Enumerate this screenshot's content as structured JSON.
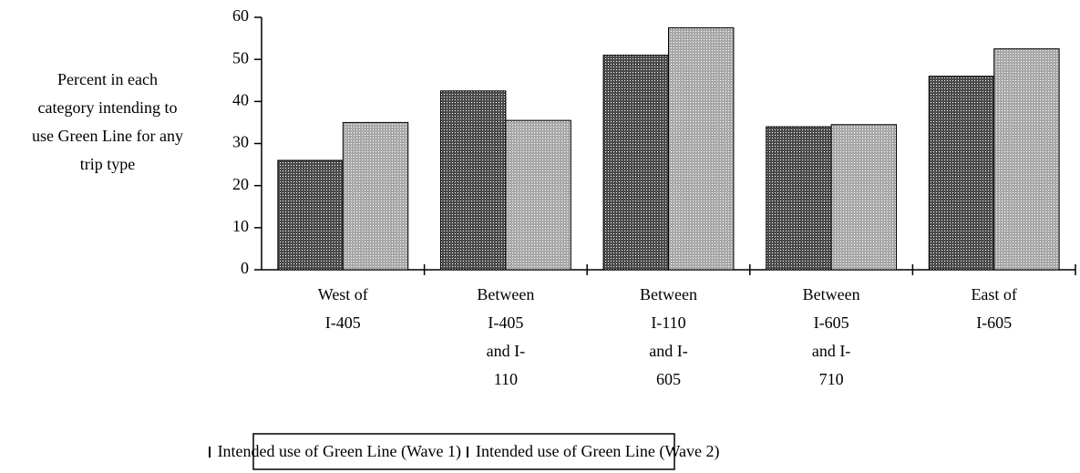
{
  "chart_data": {
    "type": "bar",
    "y_axis_label": "Percent in each\ncategory intending to\nuse Green Line for any\ntrip type",
    "categories": [
      "West of\nI-405",
      "Between\nI-405\nand I-\n110",
      "Between\nI-110\nand I-\n605",
      "Between\nI-605\nand I-\n710",
      "East of\nI-605"
    ],
    "series": [
      {
        "name": "Intended use of Green Line (Wave 1)",
        "color": "#4a4a4a",
        "values": [
          26,
          42.5,
          51,
          34,
          46
        ]
      },
      {
        "name": "Intended use of Green Line (Wave 2)",
        "color": "#a8a8a8",
        "values": [
          35,
          35.5,
          57.5,
          34.5,
          52.5
        ]
      }
    ],
    "ylim": [
      0,
      60
    ],
    "yticks": [
      0,
      10,
      20,
      30,
      40,
      50,
      60
    ],
    "grid": false,
    "legend": "bottom"
  }
}
